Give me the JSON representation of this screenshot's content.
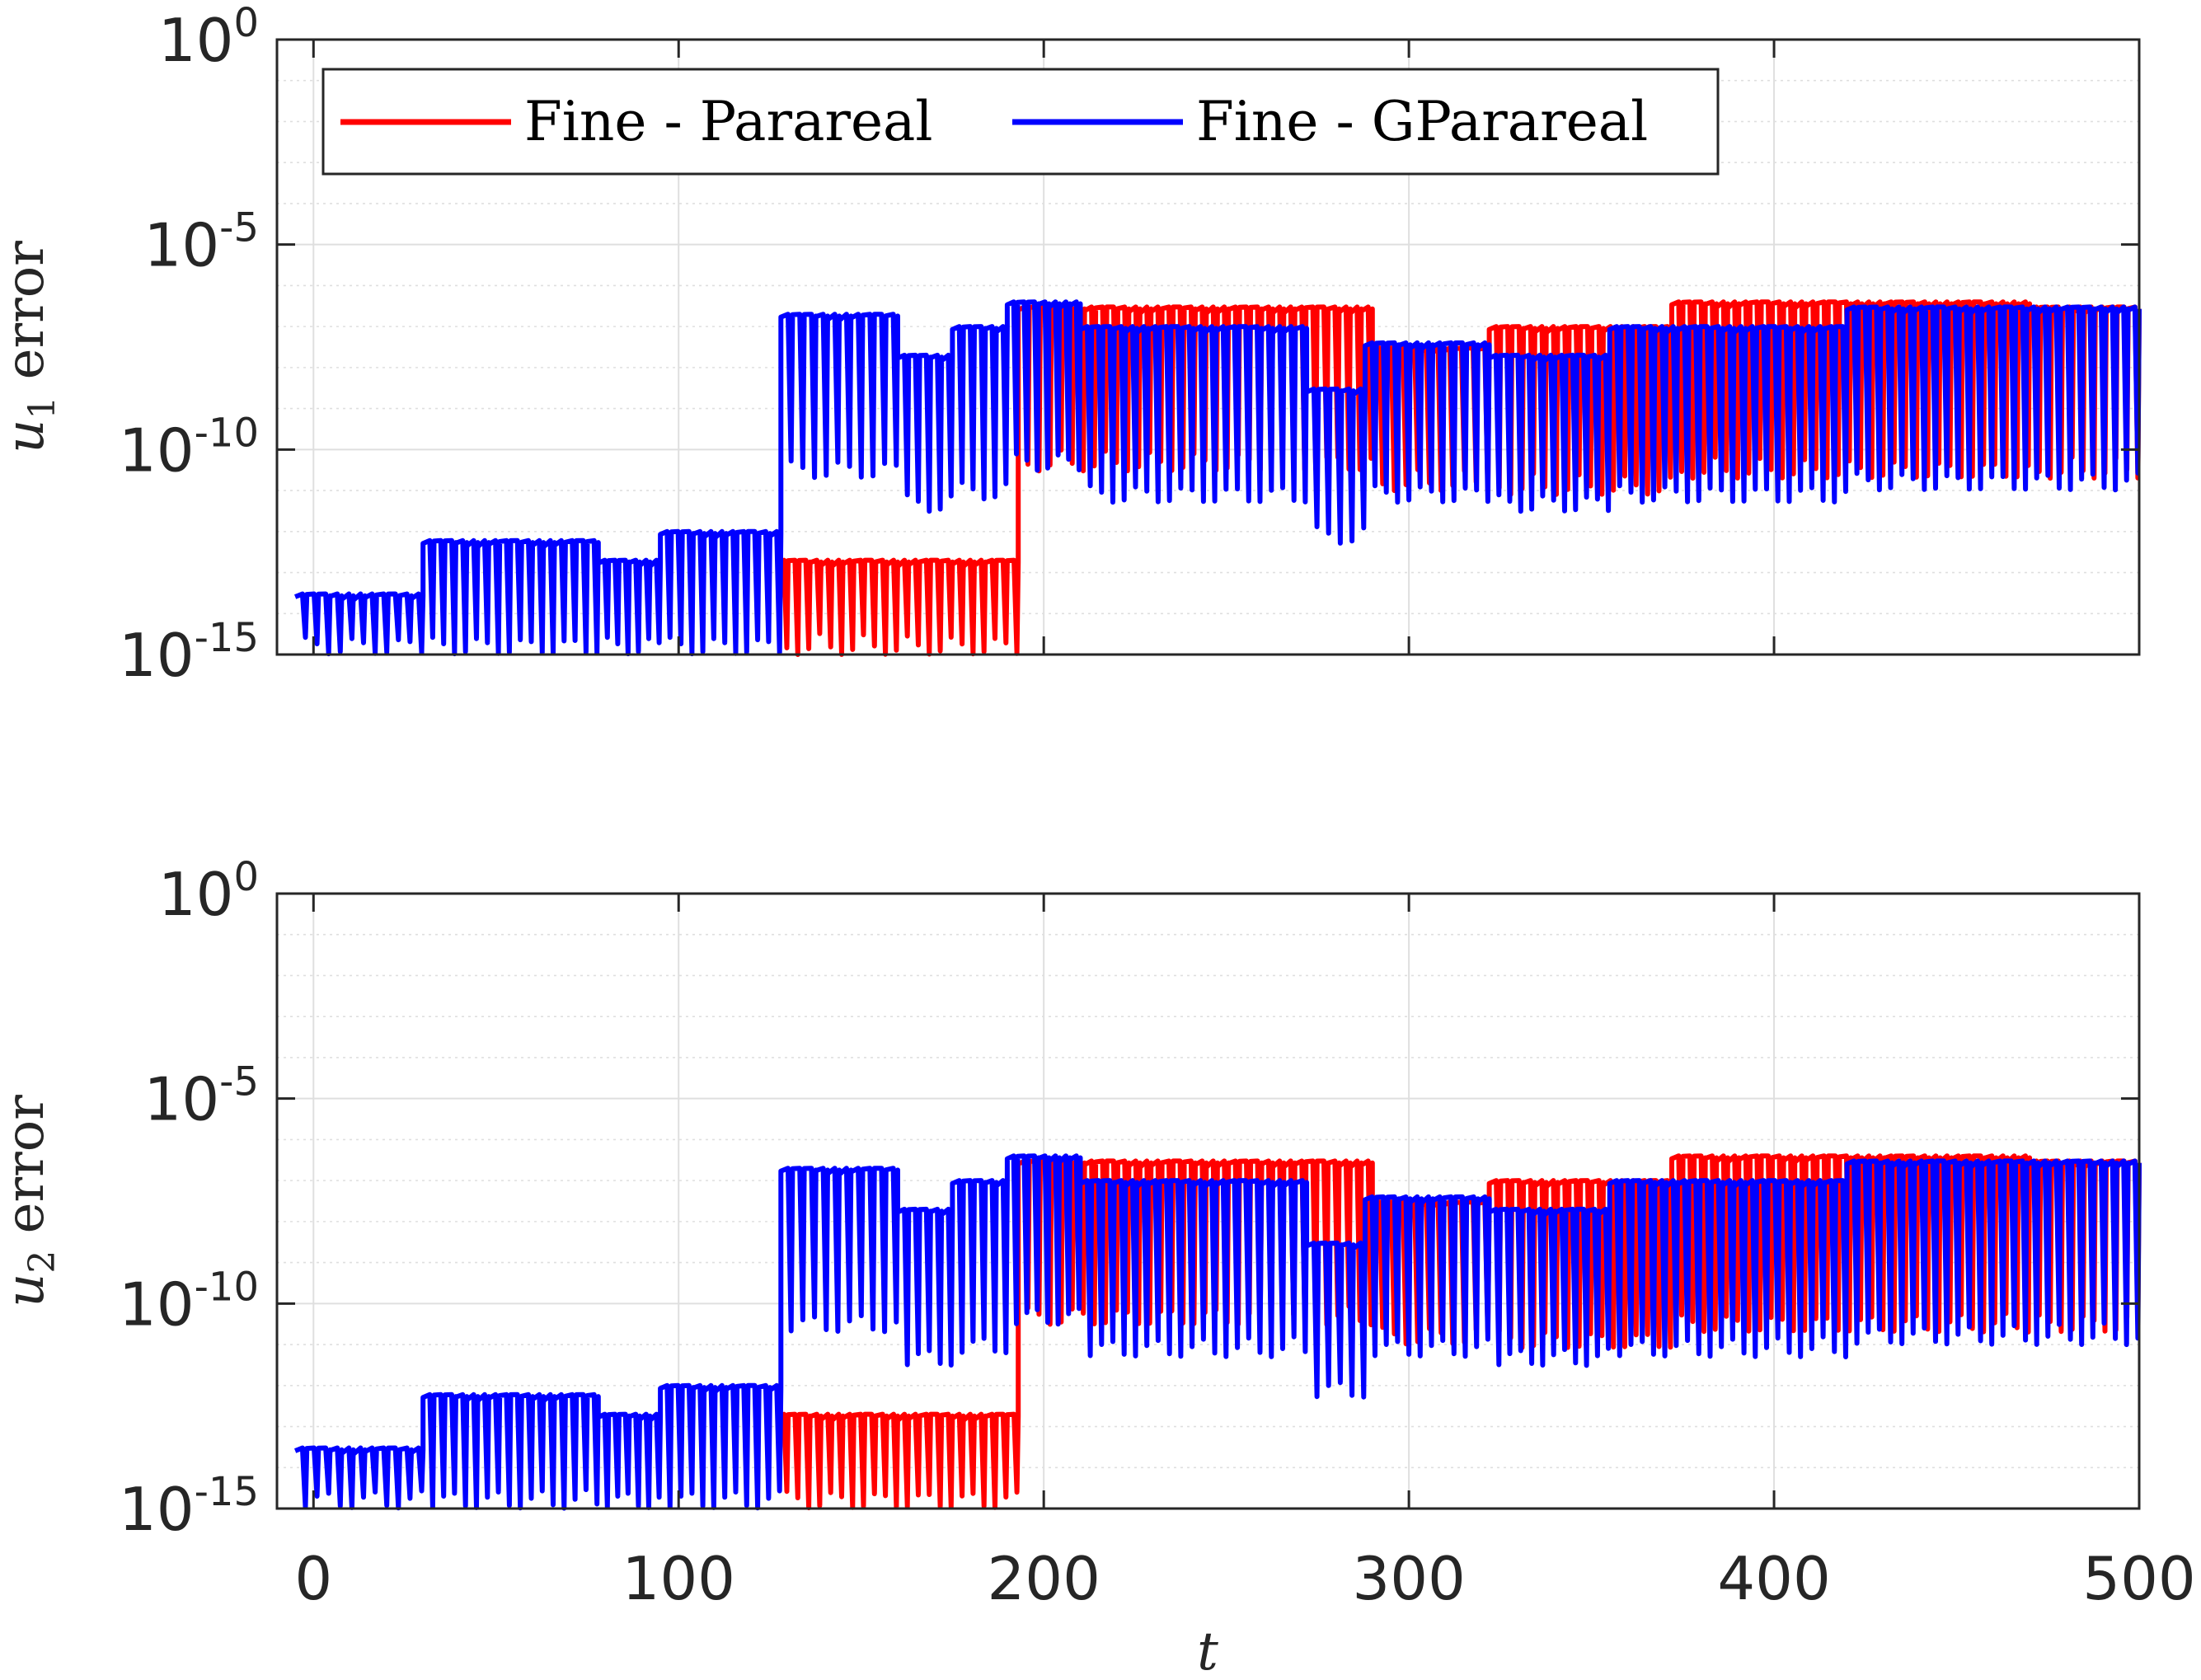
{
  "colors": {
    "parareal": "#ff0000",
    "gparareal": "#0000ff",
    "axis": "#262626",
    "grid": "#dfdfdf"
  },
  "chart_data": {
    "type": "line",
    "xlabel": "t",
    "xlim": [
      -10,
      500
    ],
    "xticks": [
      0,
      100,
      200,
      300,
      400,
      500
    ],
    "xtick_labels": [
      "0",
      "100",
      "200",
      "300",
      "400",
      "500"
    ],
    "ylog": true,
    "ylim": [
      1e-15,
      1
    ],
    "ytick_labels": [
      {
        "base": "10",
        "exp": "0"
      },
      {
        "base": "10",
        "exp": "-5"
      },
      {
        "base": "10",
        "exp": "-10"
      },
      {
        "base": "10",
        "exp": "-15"
      }
    ],
    "grid": true,
    "legend": {
      "placement": "top-left",
      "entries": [
        "Fine - Parareal",
        "Fine - GParareal"
      ]
    },
    "subplots": [
      {
        "ylabel_var": "u",
        "ylabel_sub": "1",
        "ylabel_word": " error",
        "series": [
          {
            "name": "Fine - Parareal",
            "segments": [
              {
                "t0": 127,
                "t1": 193,
                "peak": 2e-13,
                "trough": 1e-15
              },
              {
                "t0": 193,
                "t1": 290,
                "peak": 3e-07,
                "trough": 3e-11
              },
              {
                "t0": 290,
                "t1": 322,
                "peak": 3e-08,
                "trough": 1e-11
              },
              {
                "t0": 322,
                "t1": 372,
                "peak": 1e-07,
                "trough": 8e-12
              },
              {
                "t0": 372,
                "t1": 470,
                "peak": 4e-07,
                "trough": 2e-11
              },
              {
                "t0": 470,
                "t1": 500,
                "peak": 3e-07,
                "trough": 2e-11
              }
            ]
          },
          {
            "name": "Fine - GParareal",
            "segments": [
              {
                "t0": -5,
                "t1": 30,
                "peak": 3e-14,
                "trough": 1e-15
              },
              {
                "t0": 30,
                "t1": 78,
                "peak": 6e-13,
                "trough": 1e-15
              },
              {
                "t0": 78,
                "t1": 95,
                "peak": 2e-13,
                "trough": 1e-15
              },
              {
                "t0": 95,
                "t1": 128,
                "peak": 1e-12,
                "trough": 1e-15
              },
              {
                "t0": 128,
                "t1": 160,
                "peak": 2e-07,
                "trough": 2e-11
              },
              {
                "t0": 160,
                "t1": 175,
                "peak": 2e-08,
                "trough": 3e-12
              },
              {
                "t0": 175,
                "t1": 190,
                "peak": 1e-07,
                "trough": 6e-12
              },
              {
                "t0": 190,
                "t1": 210,
                "peak": 4e-07,
                "trough": 3e-11
              },
              {
                "t0": 210,
                "t1": 272,
                "peak": 1e-07,
                "trough": 5e-12
              },
              {
                "t0": 272,
                "t1": 288,
                "peak": 3e-09,
                "trough": 5e-13
              },
              {
                "t0": 288,
                "t1": 322,
                "peak": 4e-08,
                "trough": 5e-12
              },
              {
                "t0": 322,
                "t1": 355,
                "peak": 2e-08,
                "trough": 3e-12
              },
              {
                "t0": 355,
                "t1": 420,
                "peak": 1e-07,
                "trough": 5e-12
              },
              {
                "t0": 420,
                "t1": 500,
                "peak": 3e-07,
                "trough": 1e-11
              }
            ]
          }
        ]
      },
      {
        "ylabel_var": "u",
        "ylabel_sub": "2",
        "ylabel_word": " error",
        "series": [
          {
            "name": "Fine - Parareal",
            "segments": [
              {
                "t0": 127,
                "t1": 193,
                "peak": 2e-13,
                "trough": 1e-15
              },
              {
                "t0": 193,
                "t1": 290,
                "peak": 3e-07,
                "trough": 3e-11
              },
              {
                "t0": 290,
                "t1": 322,
                "peak": 3e-08,
                "trough": 1e-11
              },
              {
                "t0": 322,
                "t1": 372,
                "peak": 1e-07,
                "trough": 8e-12
              },
              {
                "t0": 372,
                "t1": 470,
                "peak": 4e-07,
                "trough": 2e-11
              },
              {
                "t0": 470,
                "t1": 500,
                "peak": 3e-07,
                "trough": 2e-11
              }
            ]
          },
          {
            "name": "Fine - GParareal",
            "segments": [
              {
                "t0": -5,
                "t1": 30,
                "peak": 3e-14,
                "trough": 1e-15
              },
              {
                "t0": 30,
                "t1": 78,
                "peak": 6e-13,
                "trough": 1e-15
              },
              {
                "t0": 78,
                "t1": 95,
                "peak": 2e-13,
                "trough": 1e-15
              },
              {
                "t0": 95,
                "t1": 128,
                "peak": 1e-12,
                "trough": 1e-15
              },
              {
                "t0": 128,
                "t1": 160,
                "peak": 2e-07,
                "trough": 2e-11
              },
              {
                "t0": 160,
                "t1": 175,
                "peak": 2e-08,
                "trough": 3e-12
              },
              {
                "t0": 175,
                "t1": 190,
                "peak": 1e-07,
                "trough": 6e-12
              },
              {
                "t0": 190,
                "t1": 210,
                "peak": 4e-07,
                "trough": 3e-11
              },
              {
                "t0": 210,
                "t1": 272,
                "peak": 1e-07,
                "trough": 5e-12
              },
              {
                "t0": 272,
                "t1": 288,
                "peak": 3e-09,
                "trough": 5e-13
              },
              {
                "t0": 288,
                "t1": 322,
                "peak": 4e-08,
                "trough": 5e-12
              },
              {
                "t0": 322,
                "t1": 355,
                "peak": 2e-08,
                "trough": 3e-12
              },
              {
                "t0": 355,
                "t1": 420,
                "peak": 1e-07,
                "trough": 5e-12
              },
              {
                "t0": 420,
                "t1": 500,
                "peak": 3e-07,
                "trough": 1e-11
              }
            ]
          }
        ]
      }
    ]
  }
}
